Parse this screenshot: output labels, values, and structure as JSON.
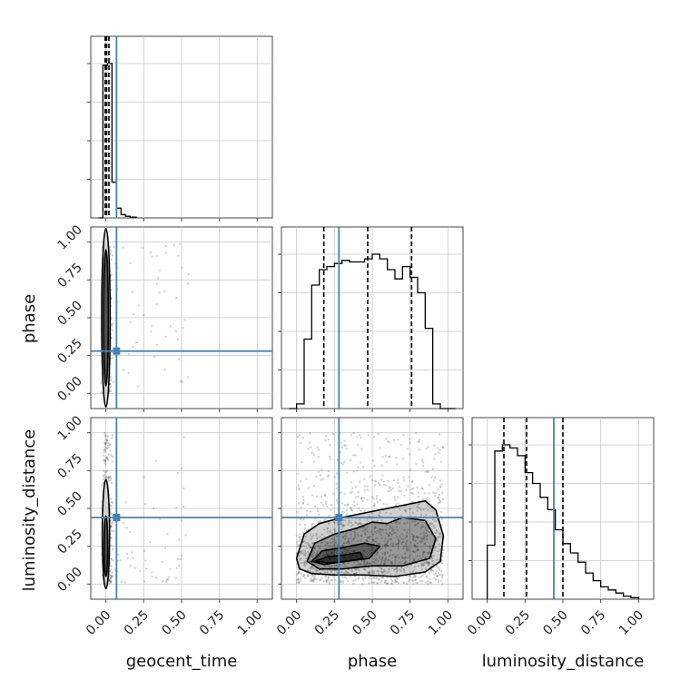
{
  "chart_data": {
    "type": "corner",
    "parameters": [
      "geocent_time",
      "phase",
      "luminosity_distance"
    ],
    "axis_range": [
      -0.1,
      1.1
    ],
    "ticks": [
      0.0,
      0.25,
      0.5,
      0.75,
      1.0
    ],
    "tick_labels": [
      "0.00",
      "0.25",
      "0.50",
      "0.75",
      "1.00"
    ],
    "grid": true,
    "truth_color": "#4682b4",
    "truths": {
      "geocent_time": 0.07,
      "phase": 0.28,
      "luminosity_distance": 0.44
    },
    "quantiles": {
      "geocent_time": [
        -0.005,
        0.005,
        0.02
      ],
      "phase": [
        0.18,
        0.47,
        0.76
      ],
      "luminosity_distance": [
        0.11,
        0.26,
        0.5
      ]
    },
    "histograms": {
      "geocent_time": {
        "bin_edges": [
          -0.05,
          -0.02,
          0.01,
          0.04,
          0.07,
          0.1,
          0.13,
          0.16,
          0.2
        ],
        "counts": [
          0,
          0.94,
          0.95,
          0.22,
          0.06,
          0.02,
          0.01,
          0.005
        ]
      },
      "phase": {
        "bin_edges": [
          -0.05,
          0.0,
          0.05,
          0.1,
          0.15,
          0.2,
          0.25,
          0.3,
          0.35,
          0.4,
          0.45,
          0.5,
          0.55,
          0.6,
          0.65,
          0.7,
          0.75,
          0.8,
          0.85,
          0.9,
          0.95,
          1.0,
          1.05
        ],
        "counts": [
          0,
          0.03,
          0.45,
          0.8,
          0.9,
          0.92,
          0.94,
          0.96,
          0.95,
          0.95,
          0.97,
          1.0,
          0.97,
          0.9,
          0.84,
          0.92,
          0.85,
          0.75,
          0.52,
          0.03,
          0.0,
          0
        ]
      },
      "luminosity_distance": {
        "bin_edges": [
          0.0,
          0.05,
          0.1,
          0.15,
          0.2,
          0.25,
          0.3,
          0.35,
          0.4,
          0.45,
          0.5,
          0.55,
          0.6,
          0.65,
          0.7,
          0.75,
          0.8,
          0.85,
          0.9,
          0.95,
          1.0
        ],
        "counts": [
          0.35,
          0.96,
          1.0,
          0.98,
          0.93,
          0.82,
          0.75,
          0.66,
          0.58,
          0.45,
          0.36,
          0.3,
          0.24,
          0.17,
          0.12,
          0.08,
          0.06,
          0.04,
          0.02,
          0.01
        ]
      }
    },
    "contour_levels": {
      "geocent_time_vs_phase": [
        {
          "cx": 0.0,
          "cy": 0.5,
          "rx": 0.028,
          "ry": 0.59
        },
        {
          "cx": 0.0,
          "cy": 0.5,
          "rx": 0.016,
          "ry": 0.45
        }
      ],
      "geocent_time_vs_luminosity_distance": [
        {
          "cx": 0.0,
          "cy": 0.33,
          "rx": 0.024,
          "ry": 0.36
        },
        {
          "cx": 0.0,
          "cy": 0.25,
          "rx": 0.012,
          "ry": 0.2
        }
      ],
      "phase_vs_luminosity_distance": [
        {
          "points": [
            [
              0.0,
              0.17
            ],
            [
              0.05,
              0.33
            ],
            [
              0.15,
              0.4
            ],
            [
              0.3,
              0.44
            ],
            [
              0.45,
              0.47
            ],
            [
              0.6,
              0.5
            ],
            [
              0.75,
              0.53
            ],
            [
              0.85,
              0.55
            ],
            [
              0.92,
              0.49
            ],
            [
              0.97,
              0.32
            ],
            [
              0.95,
              0.15
            ],
            [
              0.85,
              0.08
            ],
            [
              0.65,
              0.05
            ],
            [
              0.45,
              0.06
            ],
            [
              0.25,
              0.06
            ],
            [
              0.1,
              0.07
            ],
            [
              0.02,
              0.1
            ]
          ]
        },
        {
          "points": [
            [
              0.07,
              0.15
            ],
            [
              0.12,
              0.27
            ],
            [
              0.25,
              0.33
            ],
            [
              0.4,
              0.37
            ],
            [
              0.5,
              0.41
            ],
            [
              0.6,
              0.4
            ],
            [
              0.7,
              0.44
            ],
            [
              0.85,
              0.42
            ],
            [
              0.92,
              0.3
            ],
            [
              0.88,
              0.17
            ],
            [
              0.7,
              0.12
            ],
            [
              0.5,
              0.12
            ],
            [
              0.3,
              0.1
            ],
            [
              0.15,
              0.1
            ]
          ]
        },
        {
          "points": [
            [
              0.1,
              0.15
            ],
            [
              0.17,
              0.22
            ],
            [
              0.3,
              0.24
            ],
            [
              0.45,
              0.27
            ],
            [
              0.55,
              0.25
            ],
            [
              0.48,
              0.17
            ],
            [
              0.32,
              0.15
            ],
            [
              0.18,
              0.13
            ]
          ]
        },
        {
          "points": [
            [
              0.12,
              0.15
            ],
            [
              0.2,
              0.18
            ],
            [
              0.3,
              0.19
            ],
            [
              0.42,
              0.21
            ],
            [
              0.44,
              0.17
            ],
            [
              0.34,
              0.15
            ],
            [
              0.22,
              0.14
            ]
          ]
        }
      ]
    },
    "scatter_density": {
      "geocent_time": {
        "center": 0.0,
        "sd": 0.02,
        "tail_max": 0.55
      },
      "phase": {
        "min": 0.0,
        "max": 1.0
      },
      "luminosity_distance": {
        "mode": 0.18,
        "max": 1.0
      }
    }
  }
}
